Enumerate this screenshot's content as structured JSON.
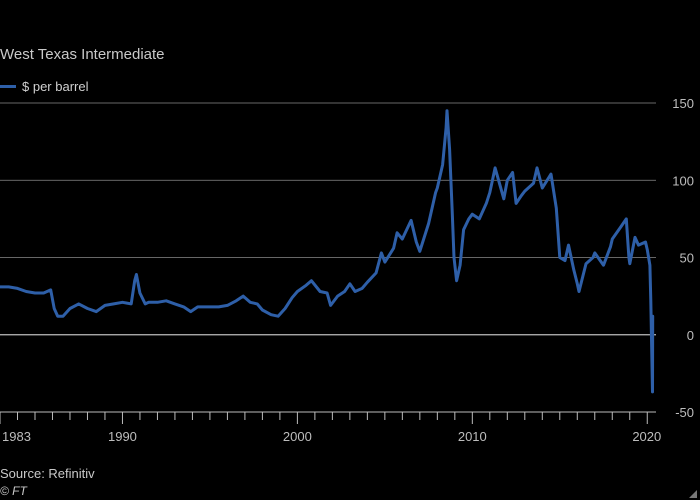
{
  "chart_data": {
    "type": "line",
    "title": "West Texas Intermediate",
    "legend": [
      {
        "label": "$ per barrel",
        "color": "#2e5fa8"
      }
    ],
    "source": "Source: Refinitiv",
    "copyright": "© FT",
    "ylim": [
      -50,
      150
    ],
    "xlim": [
      1983,
      2020.5
    ],
    "yticks": [
      150,
      100,
      50,
      0,
      -50
    ],
    "ytick_labels": [
      "150",
      "100",
      "50",
      "0",
      "-50"
    ],
    "xtick_labels": [
      {
        "year": 1983,
        "label": "1983"
      },
      {
        "year": 1990,
        "label": "1990"
      },
      {
        "year": 2000,
        "label": "2000"
      },
      {
        "year": 2010,
        "label": "2010"
      },
      {
        "year": 2020,
        "label": "2020"
      }
    ],
    "colors": {
      "line": "#2e5fa8",
      "grid": "#8a8a8a",
      "zero": "#bdbdbd",
      "axis_text": "#bdbdbd"
    },
    "series": [
      {
        "name": "$ per barrel",
        "points": [
          [
            1983.0,
            31
          ],
          [
            1983.5,
            31
          ],
          [
            1984.0,
            30
          ],
          [
            1984.5,
            28
          ],
          [
            1985.0,
            27
          ],
          [
            1985.5,
            27
          ],
          [
            1985.9,
            29
          ],
          [
            1986.1,
            17
          ],
          [
            1986.3,
            12
          ],
          [
            1986.6,
            12
          ],
          [
            1987.0,
            17
          ],
          [
            1987.5,
            20
          ],
          [
            1988.0,
            17
          ],
          [
            1988.5,
            15
          ],
          [
            1989.0,
            19
          ],
          [
            1989.5,
            20
          ],
          [
            1990.0,
            21
          ],
          [
            1990.5,
            20
          ],
          [
            1990.7,
            35
          ],
          [
            1990.8,
            39
          ],
          [
            1991.0,
            27
          ],
          [
            1991.3,
            20
          ],
          [
            1991.5,
            21
          ],
          [
            1992.0,
            21
          ],
          [
            1992.5,
            22
          ],
          [
            1993.0,
            20
          ],
          [
            1993.5,
            18
          ],
          [
            1993.9,
            15
          ],
          [
            1994.3,
            18
          ],
          [
            1994.7,
            18
          ],
          [
            1995.0,
            18
          ],
          [
            1995.5,
            18
          ],
          [
            1996.0,
            19
          ],
          [
            1996.5,
            22
          ],
          [
            1996.9,
            25
          ],
          [
            1997.3,
            21
          ],
          [
            1997.7,
            20
          ],
          [
            1998.0,
            16
          ],
          [
            1998.5,
            13
          ],
          [
            1998.9,
            12
          ],
          [
            1999.3,
            17
          ],
          [
            1999.7,
            24
          ],
          [
            2000.0,
            28
          ],
          [
            2000.5,
            32
          ],
          [
            2000.8,
            35
          ],
          [
            2001.3,
            28
          ],
          [
            2001.7,
            27
          ],
          [
            2001.9,
            19
          ],
          [
            2002.3,
            25
          ],
          [
            2002.7,
            28
          ],
          [
            2003.0,
            33
          ],
          [
            2003.3,
            28
          ],
          [
            2003.7,
            30
          ],
          [
            2004.0,
            34
          ],
          [
            2004.5,
            40
          ],
          [
            2004.8,
            53
          ],
          [
            2005.0,
            47
          ],
          [
            2005.5,
            56
          ],
          [
            2005.7,
            66
          ],
          [
            2006.0,
            62
          ],
          [
            2006.5,
            74
          ],
          [
            2006.8,
            60
          ],
          [
            2007.0,
            54
          ],
          [
            2007.5,
            72
          ],
          [
            2007.9,
            92
          ],
          [
            2008.0,
            95
          ],
          [
            2008.3,
            110
          ],
          [
            2008.5,
            134
          ],
          [
            2008.55,
            145
          ],
          [
            2008.7,
            120
          ],
          [
            2008.85,
            80
          ],
          [
            2008.95,
            50
          ],
          [
            2009.1,
            35
          ],
          [
            2009.3,
            45
          ],
          [
            2009.5,
            68
          ],
          [
            2009.8,
            75
          ],
          [
            2010.0,
            78
          ],
          [
            2010.4,
            75
          ],
          [
            2010.8,
            85
          ],
          [
            2011.0,
            92
          ],
          [
            2011.3,
            108
          ],
          [
            2011.5,
            100
          ],
          [
            2011.8,
            88
          ],
          [
            2012.0,
            100
          ],
          [
            2012.3,
            105
          ],
          [
            2012.5,
            85
          ],
          [
            2012.8,
            90
          ],
          [
            2013.0,
            93
          ],
          [
            2013.5,
            98
          ],
          [
            2013.7,
            108
          ],
          [
            2014.0,
            95
          ],
          [
            2014.5,
            104
          ],
          [
            2014.8,
            82
          ],
          [
            2015.0,
            50
          ],
          [
            2015.3,
            48
          ],
          [
            2015.5,
            58
          ],
          [
            2015.8,
            42
          ],
          [
            2016.0,
            33
          ],
          [
            2016.1,
            28
          ],
          [
            2016.5,
            46
          ],
          [
            2016.9,
            50
          ],
          [
            2017.0,
            53
          ],
          [
            2017.5,
            45
          ],
          [
            2017.9,
            57
          ],
          [
            2018.0,
            62
          ],
          [
            2018.5,
            70
          ],
          [
            2018.8,
            75
          ],
          [
            2018.95,
            50
          ],
          [
            2019.0,
            46
          ],
          [
            2019.3,
            63
          ],
          [
            2019.5,
            58
          ],
          [
            2019.9,
            60
          ],
          [
            2020.0,
            55
          ],
          [
            2020.15,
            45
          ],
          [
            2020.2,
            22
          ],
          [
            2020.3,
            -37
          ],
          [
            2020.31,
            12
          ]
        ]
      }
    ]
  }
}
